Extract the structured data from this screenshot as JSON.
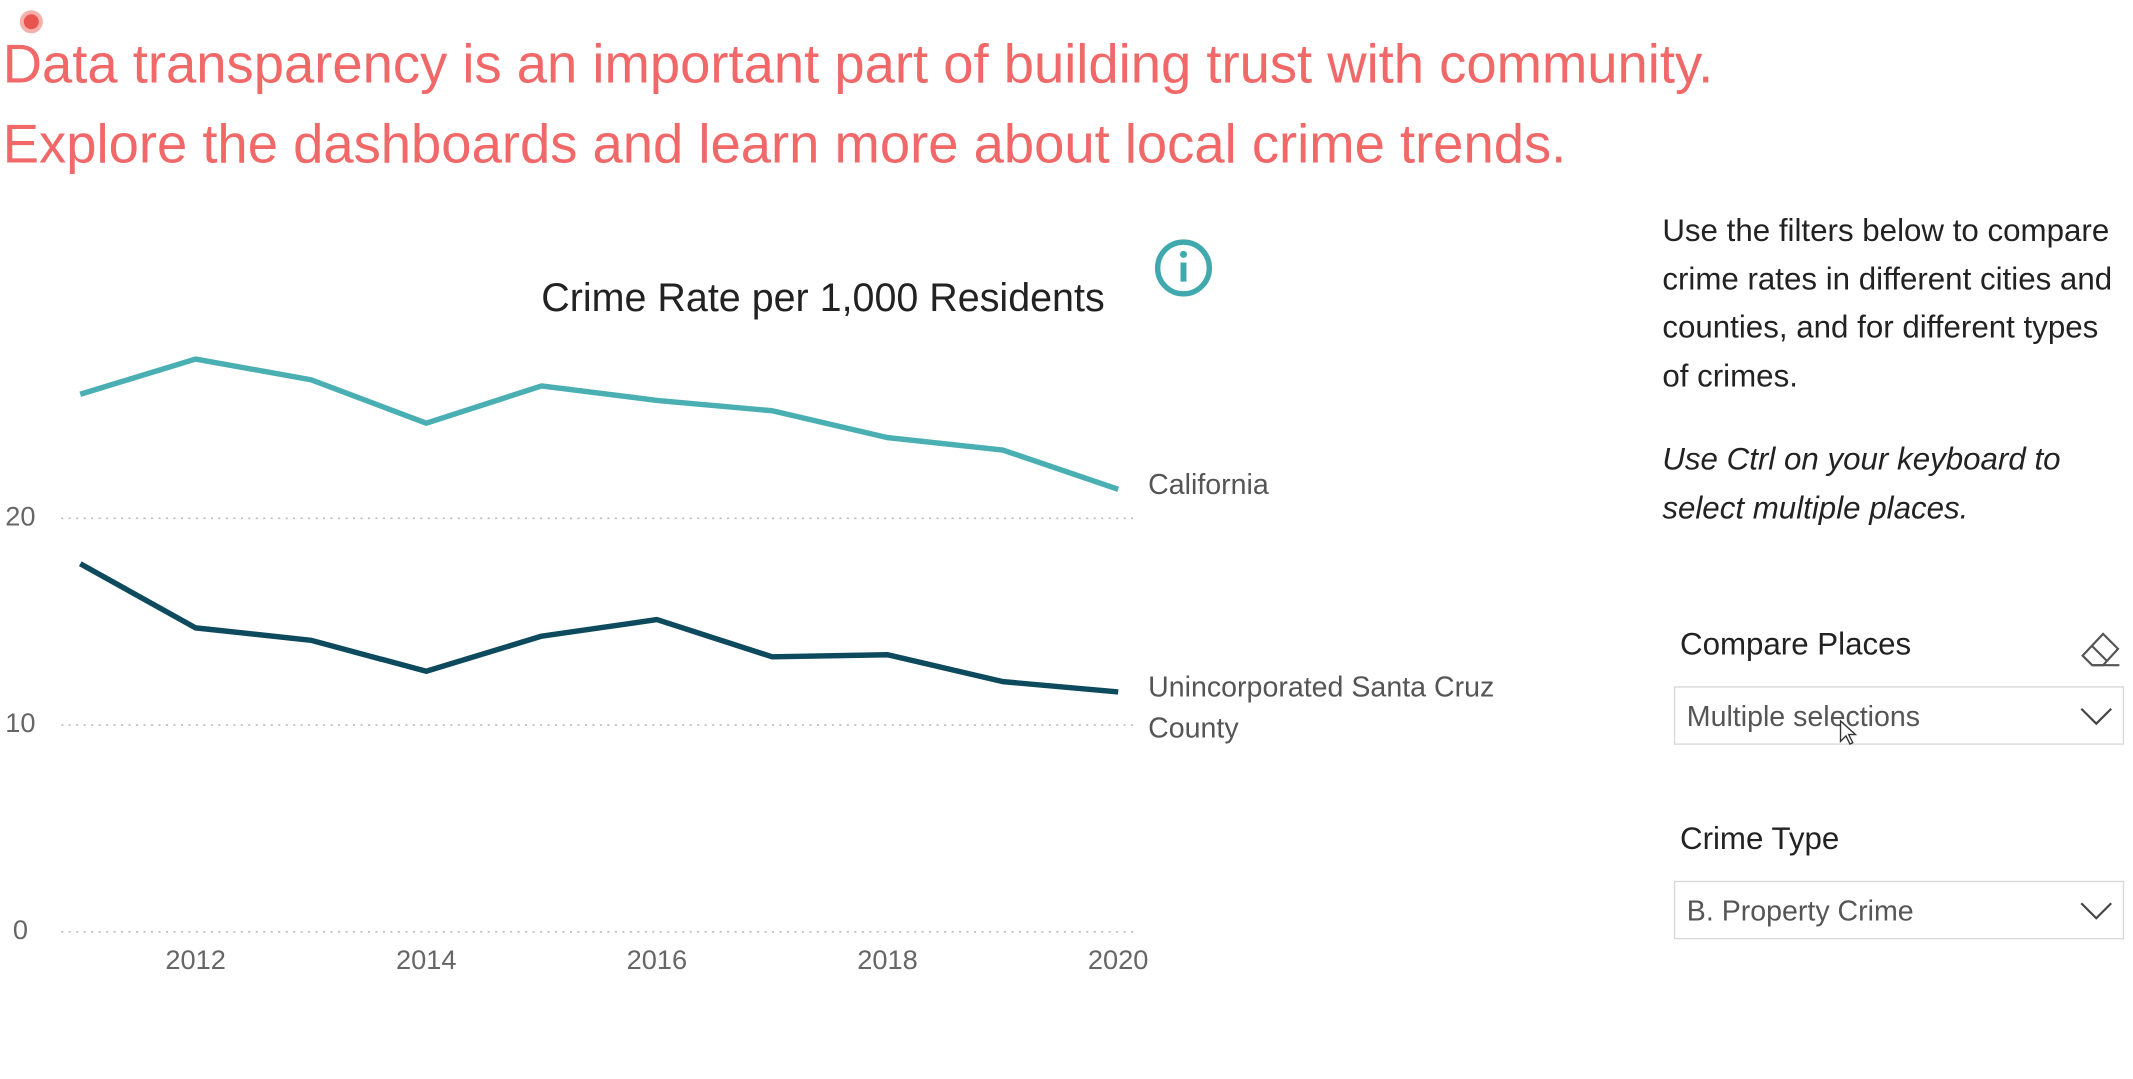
{
  "header": {
    "lines": [
      "Data transparency is an important part of building trust with community.",
      "Explore the dashboards and learn more about local crime trends."
    ]
  },
  "chart_data": {
    "type": "line",
    "title": "Crime Rate per 1,000 Residents",
    "x": [
      2011,
      2012,
      2013,
      2014,
      2015,
      2016,
      2017,
      2018,
      2019,
      2020
    ],
    "xlim": [
      2011,
      2020
    ],
    "xticks": [
      2012,
      2014,
      2016,
      2018,
      2020
    ],
    "ylim": [
      0,
      28
    ],
    "yticks": [
      0,
      10,
      20
    ],
    "grid": true,
    "series": [
      {
        "name": "California",
        "color": "#4aafb2",
        "values": [
          26.0,
          27.7,
          26.7,
          24.6,
          26.4,
          25.7,
          25.2,
          23.9,
          23.3,
          21.4
        ]
      },
      {
        "name": "Unincorporated Santa Cruz County",
        "color": "#0e4a5e",
        "values": [
          17.8,
          14.7,
          14.1,
          12.6,
          14.3,
          15.1,
          13.3,
          13.4,
          12.1,
          11.6
        ]
      }
    ]
  },
  "filters": {
    "description": "Use the filters below to compare crime rates in different cities and counties, and for different types of crimes.",
    "note": "Use Ctrl on your keyboard to select multiple places.",
    "compare_places": {
      "label": "Compare Places",
      "value": "Multiple selections"
    },
    "crime_type": {
      "label": "Crime Type",
      "value": "B. Property Crime"
    }
  }
}
